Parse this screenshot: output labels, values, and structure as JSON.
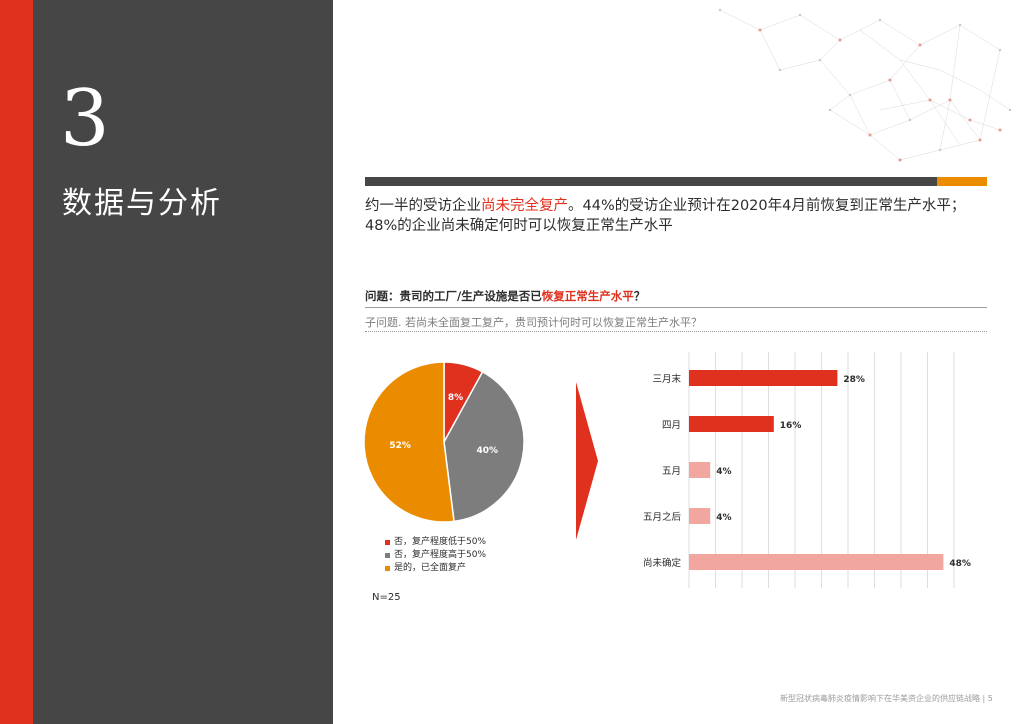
{
  "section": {
    "number": "3",
    "title": "数据与分析"
  },
  "headline": {
    "part1": "约一半的受访企业",
    "highlight": "尚未完全复产",
    "part2": "。44%的受访企业预计在2020年4月前恢复到正常生产水平；48%的企业尚未确定何时可以恢复正常生产水平"
  },
  "question": {
    "prefix": "问题：贵司的工厂/生产设施是否已",
    "highlight": "恢复正常生产水平",
    "suffix": "？"
  },
  "subquestion": "子问题. 若尚未全面复工复产，贵司预计何时可以恢复正常生产水平？",
  "sample_size": "N=25",
  "footer": "新型冠状病毒肺炎疫情影响下在华美资企业的供应链战略 | 5",
  "colors": {
    "red": "#e0301e",
    "grey": "#7d7d7d",
    "orange": "#eb8c00",
    "light_red": "#f2a6a0",
    "dark": "#464646"
  },
  "chart_data": [
    {
      "type": "pie",
      "slices": [
        {
          "label": "否，复产程度低于50%",
          "value": 8,
          "display": "8%",
          "color": "#e0301e"
        },
        {
          "label": "否，复产程度高于50%",
          "value": 40,
          "display": "40%",
          "color": "#7d7d7d"
        },
        {
          "label": "是的，已全面复产",
          "value": 52,
          "display": "52%",
          "color": "#eb8c00"
        }
      ],
      "legend_position": "bottom"
    },
    {
      "type": "bar",
      "orientation": "horizontal",
      "categories": [
        "三月末",
        "四月",
        "五月",
        "五月之后",
        "尚未确定"
      ],
      "values": [
        28,
        16,
        4,
        4,
        48
      ],
      "display": [
        "28%",
        "16%",
        "4%",
        "4%",
        "48%"
      ],
      "colors": [
        "#e0301e",
        "#e0301e",
        "#f2a6a0",
        "#f2a6a0",
        "#f2a6a0"
      ],
      "xlim": [
        0,
        50
      ],
      "grid": true
    }
  ]
}
